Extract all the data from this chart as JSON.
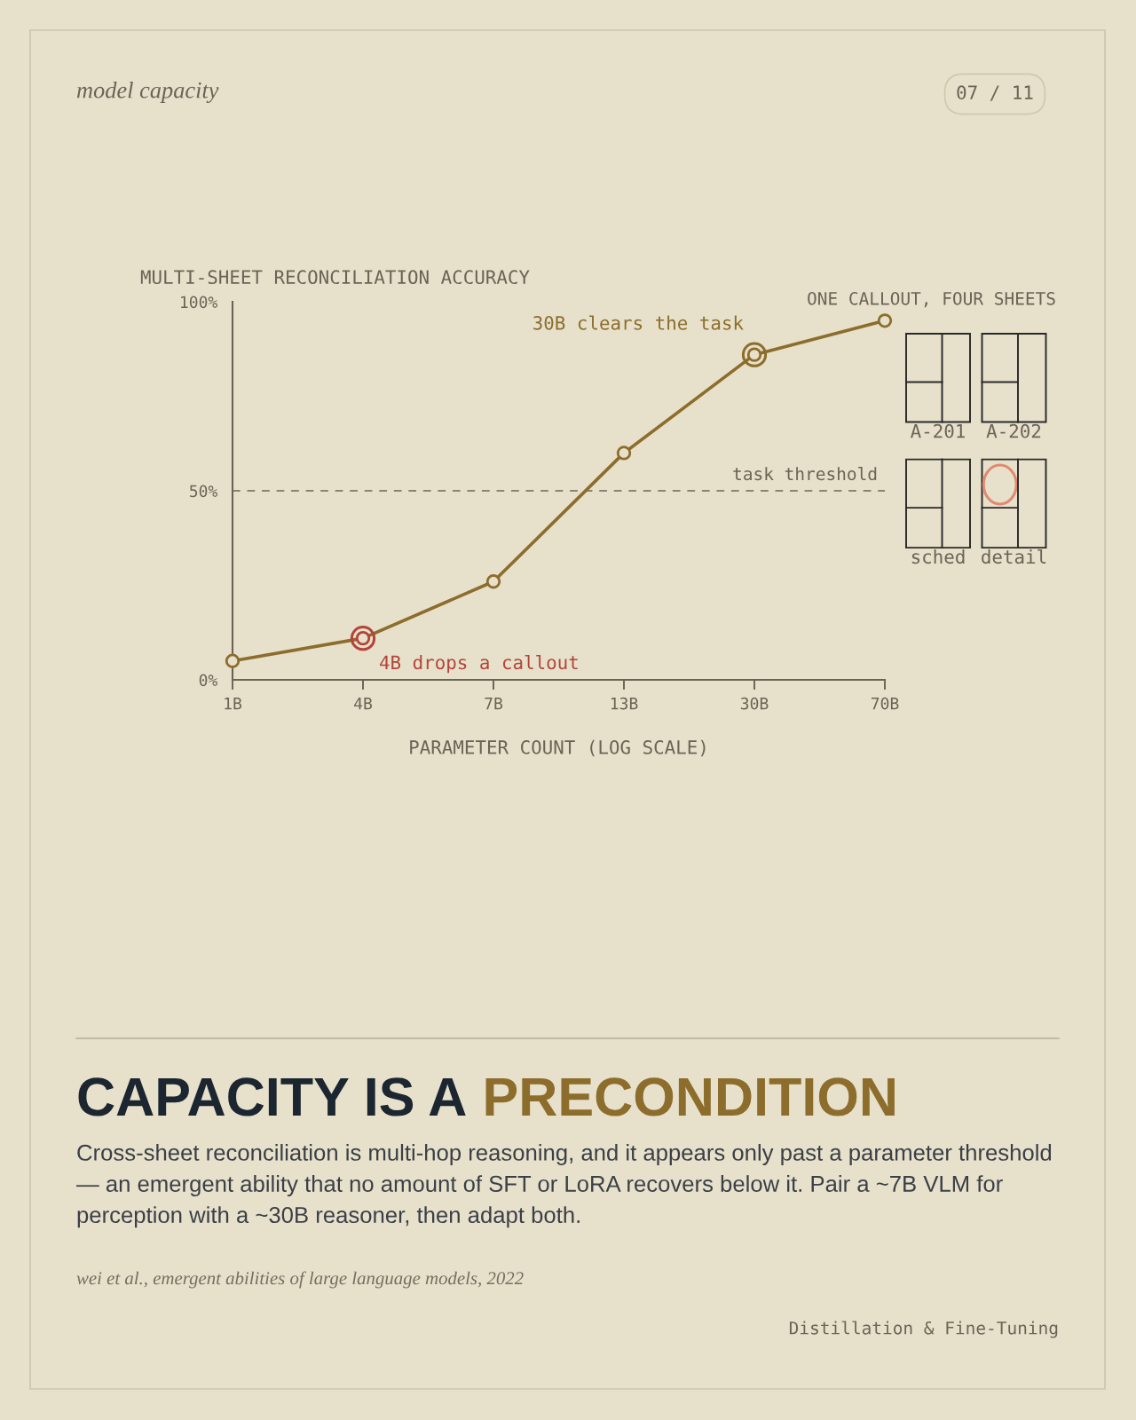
{
  "chart_data": {
    "type": "line",
    "title": "CAPACITY IS A PRECONDITION",
    "subtitle": "Cross-sheet reconciliation is multi-hop reasoning, and it appears only past a parameter threshold — an emergent ability that no amount of SFT or LoRA recovers below it. Pair a ~7B VLM for perception with a ~30B reasoner, then adapt both.",
    "xlabel": "PARAMETER COUNT (LOG SCALE)",
    "ylabel": "MULTI-SHEET RECONCILIATION ACCURACY",
    "categories": [
      "1B",
      "4B",
      "7B",
      "13B",
      "30B",
      "70B"
    ],
    "series": [
      {
        "color": "#8c6d2c",
        "colors": [
          "#8c6d2c",
          "#b3443a",
          "#8c6d2c",
          "#8c6d2c",
          "#8c6d2c",
          "#8c6d2c"
        ],
        "values": [
          5,
          11,
          26,
          60,
          86,
          95
        ]
      }
    ],
    "ylim": [
      0,
      100
    ],
    "yticks": [
      {
        "value": 0,
        "label": "0%"
      },
      {
        "value": 50,
        "label": "50%"
      },
      {
        "value": 100,
        "label": "100%"
      }
    ],
    "marker": "circle",
    "line_style": "solid",
    "ref_lines": [
      {
        "axis": "y",
        "value": 50,
        "label": "task threshold",
        "color": "#8a8474",
        "line_style": "dashed"
      }
    ],
    "annotations": [
      "model capacity",
      "07 / 11",
      "ONE CALLOUT, FOUR SHEETS",
      "A-201",
      "A-202",
      "sched",
      "detail",
      {
        "text": "30B clears the task",
        "x": "30B",
        "y": 86
      },
      {
        "text": "4B drops a callout",
        "x": "4B",
        "y": 11
      },
      "wei et al., emergent abilities of large language models, 2022",
      "Distillation & Fine-Tuning"
    ]
  }
}
